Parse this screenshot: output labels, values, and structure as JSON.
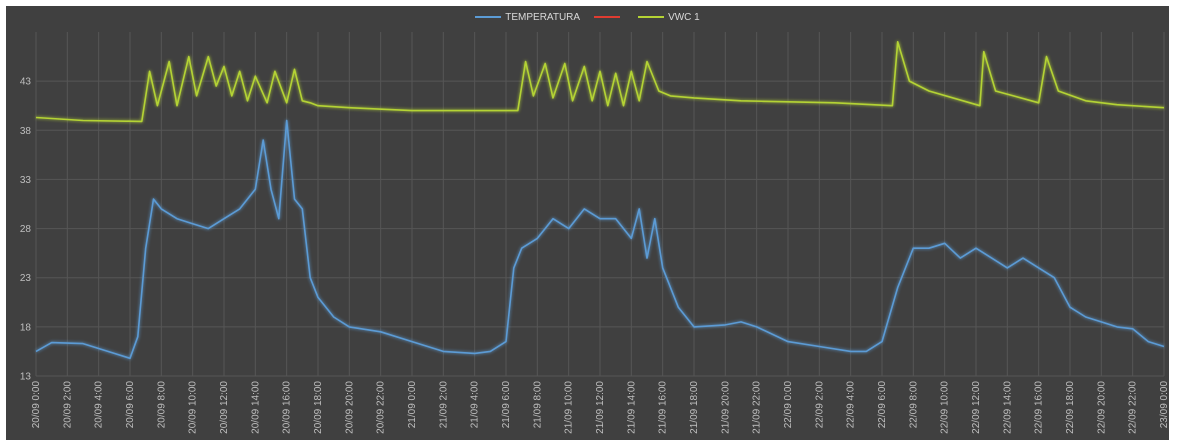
{
  "chart_data": {
    "type": "line",
    "title": "",
    "xlabel": "",
    "ylabel": "",
    "ylim": [
      13,
      48
    ],
    "yticks": [
      13,
      18,
      23,
      28,
      33,
      38,
      43
    ],
    "grid": true,
    "legend_position": "top-center",
    "x_start": "20/09 0:00",
    "x_end": "23/09 0:00",
    "x_tick_labels": [
      "20/09 0:00",
      "20/09 2:00",
      "20/09 4:00",
      "20/09 6:00",
      "20/09 8:00",
      "20/09 10:00",
      "20/09 12:00",
      "20/09 14:00",
      "20/09 16:00",
      "20/09 18:00",
      "20/09 20:00",
      "20/09 22:00",
      "21/09 0:00",
      "21/09 2:00",
      "21/09 4:00",
      "21/09 6:00",
      "21/09 8:00",
      "21/09 10:00",
      "21/09 12:00",
      "21/09 14:00",
      "21/09 16:00",
      "21/09 18:00",
      "21/09 20:00",
      "21/09 22:00",
      "22/09 0:00",
      "22/09 2:00",
      "22/09 4:00",
      "22/09 6:00",
      "22/09 8:00",
      "22/09 10:00",
      "22/09 12:00",
      "22/09 14:00",
      "22/09 16:00",
      "22/09 18:00",
      "22/09 20:00",
      "22/09 22:00",
      "23/09 0:00"
    ],
    "legend": [
      {
        "name": "TEMPERATURA",
        "color": "#5b9bd5"
      },
      {
        "name": "",
        "color": "#e03c31"
      },
      {
        "name": "VWC 1",
        "color": "#b4d334"
      }
    ],
    "series": [
      {
        "name": "TEMPERATURA",
        "color": "#5b9bd5",
        "x": [
          "20/09 0:00",
          "20/09 1:00",
          "20/09 3:00",
          "20/09 5:00",
          "20/09 6:00",
          "20/09 6:30",
          "20/09 7:00",
          "20/09 7:30",
          "20/09 8:00",
          "20/09 9:00",
          "20/09 10:00",
          "20/09 11:00",
          "20/09 12:00",
          "20/09 13:00",
          "20/09 14:00",
          "20/09 14:30",
          "20/09 15:00",
          "20/09 15:30",
          "20/09 16:00",
          "20/09 16:30",
          "20/09 17:00",
          "20/09 17:30",
          "20/09 18:00",
          "20/09 19:00",
          "20/09 20:00",
          "20/09 22:00",
          "21/09 0:00",
          "21/09 2:00",
          "21/09 4:00",
          "21/09 5:00",
          "21/09 6:00",
          "21/09 6:30",
          "21/09 7:00",
          "21/09 8:00",
          "21/09 9:00",
          "21/09 10:00",
          "21/09 11:00",
          "21/09 12:00",
          "21/09 13:00",
          "21/09 14:00",
          "21/09 14:30",
          "21/09 15:00",
          "21/09 15:30",
          "21/09 16:00",
          "21/09 17:00",
          "21/09 18:00",
          "21/09 20:00",
          "21/09 21:00",
          "21/09 22:00",
          "22/09 0:00",
          "22/09 2:00",
          "22/09 4:00",
          "22/09 5:00",
          "22/09 6:00",
          "22/09 7:00",
          "22/09 8:00",
          "22/09 9:00",
          "22/09 10:00",
          "22/09 11:00",
          "22/09 12:00",
          "22/09 13:00",
          "22/09 14:00",
          "22/09 15:00",
          "22/09 16:00",
          "22/09 17:00",
          "22/09 18:00",
          "22/09 19:00",
          "22/09 20:00",
          "22/09 21:00",
          "22/09 22:00",
          "22/09 23:00",
          "23/09 0:00"
        ],
        "values": [
          15.5,
          16.4,
          16.3,
          15.3,
          14.8,
          17,
          26,
          31,
          30,
          29,
          28.5,
          28,
          29,
          30,
          32,
          37,
          32,
          29,
          39,
          31,
          30,
          23,
          21,
          19,
          18,
          17.5,
          16.5,
          15.5,
          15.3,
          15.5,
          16.5,
          24,
          26,
          27,
          29,
          28,
          30,
          29,
          29,
          27,
          30,
          25,
          29,
          24,
          20,
          18,
          18.2,
          18.5,
          18,
          16.5,
          16,
          15.5,
          15.5,
          16.5,
          22,
          26,
          26,
          26.5,
          25,
          26,
          25,
          24,
          25,
          24,
          23,
          20,
          19,
          18.5,
          18,
          17.8,
          16.5,
          16
        ]
      },
      {
        "name": "VWC 1",
        "color": "#b4d334",
        "x": [
          "20/09 0:00",
          "20/09 3:00",
          "20/09 6:45",
          "20/09 7:15",
          "20/09 7:45",
          "20/09 8:30",
          "20/09 9:00",
          "20/09 9:45",
          "20/09 10:15",
          "20/09 11:00",
          "20/09 11:30",
          "20/09 12:00",
          "20/09 12:30",
          "20/09 13:00",
          "20/09 13:30",
          "20/09 14:00",
          "20/09 14:45",
          "20/09 15:15",
          "20/09 16:00",
          "20/09 16:30",
          "20/09 17:00",
          "20/09 17:30",
          "20/09 18:00",
          "20/09 20:00",
          "21/09 0:00",
          "21/09 3:00",
          "21/09 6:45",
          "21/09 7:15",
          "21/09 7:45",
          "21/09 8:30",
          "21/09 9:00",
          "21/09 9:45",
          "21/09 10:15",
          "21/09 11:00",
          "21/09 11:30",
          "21/09 12:00",
          "21/09 12:30",
          "21/09 13:00",
          "21/09 13:30",
          "21/09 14:00",
          "21/09 14:30",
          "21/09 15:00",
          "21/09 15:45",
          "21/09 16:30",
          "21/09 18:00",
          "21/09 21:00",
          "22/09 0:00",
          "22/09 3:00",
          "22/09 6:40",
          "22/09 7:00",
          "22/09 7:45",
          "22/09 9:00",
          "22/09 12:15",
          "22/09 12:30",
          "22/09 13:15",
          "22/09 16:00",
          "22/09 16:30",
          "22/09 17:15",
          "22/09 19:00",
          "22/09 21:00",
          "23/09 0:00"
        ],
        "values": [
          39.3,
          39,
          38.9,
          44,
          40.5,
          45,
          40.5,
          45.5,
          41.5,
          45.5,
          42.5,
          44.5,
          41.5,
          44,
          41,
          43.5,
          40.8,
          44,
          40.8,
          44.2,
          41,
          40.8,
          40.5,
          40.3,
          40,
          40,
          40,
          45,
          41.5,
          44.8,
          41.3,
          44.8,
          41,
          44.5,
          41,
          44,
          40.5,
          43.8,
          40.5,
          44,
          41,
          45,
          42,
          41.5,
          41.3,
          41,
          40.9,
          40.8,
          40.5,
          47,
          43,
          42,
          40.5,
          46,
          42,
          40.8,
          45.5,
          42,
          41,
          40.6,
          40.3
        ]
      }
    ]
  }
}
